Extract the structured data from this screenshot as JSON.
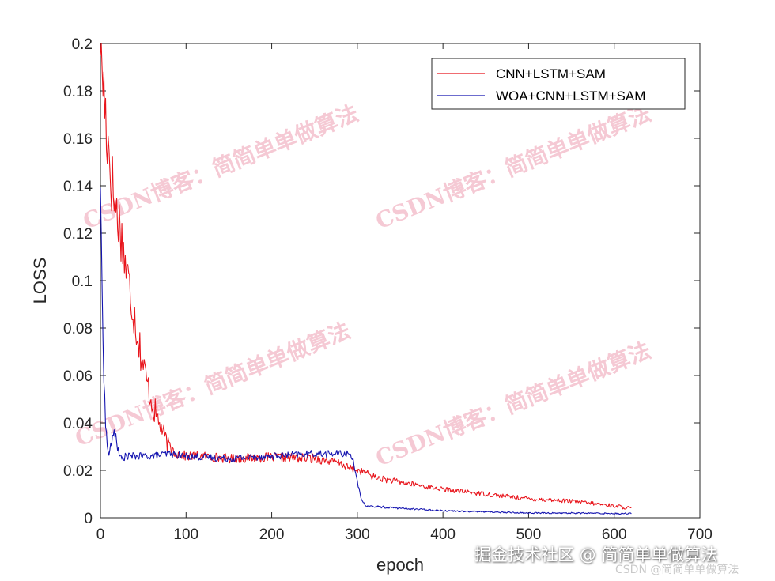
{
  "chart_data": {
    "type": "line",
    "title": "",
    "xlabel": "epoch",
    "ylabel": "LOSS",
    "xlim": [
      0,
      700
    ],
    "ylim": [
      0,
      0.2
    ],
    "xticks": [
      "0",
      "100",
      "200",
      "300",
      "400",
      "500",
      "600",
      "700"
    ],
    "yticks": [
      "0",
      "0.02",
      "0.04",
      "0.06",
      "0.08",
      "0.1",
      "0.12",
      "0.14",
      "0.16",
      "0.18",
      "0.2"
    ],
    "legend_position": "top-right",
    "grid": false,
    "series": [
      {
        "name": "CNN+LSTM+SAM",
        "color": "#e8151c",
        "x": [
          0,
          3,
          6,
          10,
          14,
          18,
          22,
          26,
          30,
          35,
          40,
          45,
          50,
          55,
          60,
          65,
          70,
          75,
          80,
          90,
          100,
          120,
          150,
          200,
          250,
          280,
          290,
          300,
          310,
          320,
          350,
          400,
          450,
          500,
          550,
          600,
          620
        ],
        "y": [
          0.2,
          0.185,
          0.17,
          0.155,
          0.14,
          0.13,
          0.125,
          0.115,
          0.105,
          0.095,
          0.085,
          0.074,
          0.064,
          0.056,
          0.049,
          0.043,
          0.039,
          0.034,
          0.03,
          0.027,
          0.026,
          0.026,
          0.025,
          0.0255,
          0.025,
          0.023,
          0.021,
          0.02,
          0.019,
          0.017,
          0.015,
          0.012,
          0.01,
          0.008,
          0.007,
          0.005,
          0.004
        ],
        "noise": [
          0.01,
          0.018,
          0.02,
          0.018,
          0.016,
          0.014,
          0.012,
          0.012,
          0.012,
          0.011,
          0.01,
          0.009,
          0.008,
          0.007,
          0.006,
          0.006,
          0.005,
          0.004,
          0.003,
          0.0025,
          0.002,
          0.002,
          0.002,
          0.002,
          0.002,
          0.0015,
          0.0015,
          0.0015,
          0.0015,
          0.0015,
          0.0012,
          0.001,
          0.001,
          0.0009,
          0.0008,
          0.0008,
          0.0008
        ]
      },
      {
        "name": "WOA+CNN+LSTM+SAM",
        "color": "#1515b0",
        "x": [
          0,
          2,
          4,
          6,
          8,
          10,
          12,
          14,
          16,
          18,
          20,
          22,
          25,
          30,
          40,
          60,
          80,
          100,
          150,
          200,
          250,
          280,
          290,
          295,
          300,
          305,
          310,
          350,
          400,
          450,
          500,
          550,
          600,
          620
        ],
        "y": [
          0.14,
          0.095,
          0.06,
          0.04,
          0.03,
          0.027,
          0.03,
          0.033,
          0.036,
          0.035,
          0.03,
          0.026,
          0.025,
          0.026,
          0.026,
          0.026,
          0.027,
          0.026,
          0.025,
          0.026,
          0.027,
          0.027,
          0.027,
          0.025,
          0.015,
          0.007,
          0.005,
          0.004,
          0.003,
          0.0025,
          0.002,
          0.002,
          0.0018,
          0.0018
        ],
        "noise": [
          0.002,
          0.003,
          0.003,
          0.003,
          0.002,
          0.002,
          0.002,
          0.002,
          0.002,
          0.002,
          0.002,
          0.0015,
          0.0015,
          0.0015,
          0.0015,
          0.0015,
          0.0015,
          0.0015,
          0.0015,
          0.0015,
          0.0015,
          0.0015,
          0.0015,
          0.001,
          0.001,
          0.0006,
          0.0005,
          0.0004,
          0.0003,
          0.0003,
          0.0003,
          0.0003,
          0.0003,
          0.0003
        ]
      }
    ]
  },
  "watermarks": [
    "CSDN博客：简简单单做算法",
    "CSDN博客：简简单单做算法",
    "CSDN博客：简简单单做算法",
    "CSDN博客：简简单单做算法"
  ],
  "footer": {
    "main": "掘金技术社区 @ 简简单单做算法",
    "sub": "CSDN @简简单单做算法"
  }
}
